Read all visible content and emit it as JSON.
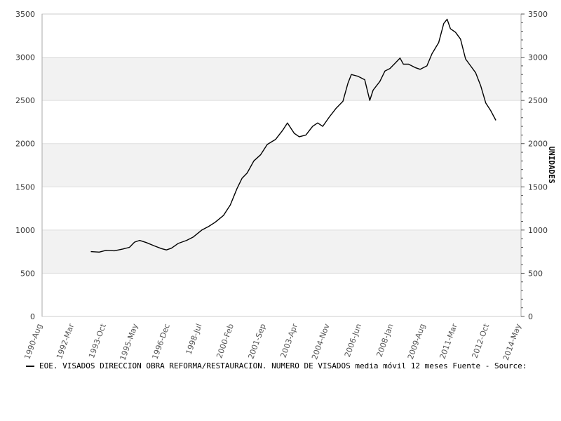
{
  "chart_data": {
    "type": "line",
    "ylabel_right": "UNIDADES",
    "ylim": [
      0,
      3500
    ],
    "yticks": [
      0,
      500,
      1000,
      1500,
      2000,
      2500,
      3000,
      3500
    ],
    "x_tick_labels": [
      "1990-Aug",
      "1992-Mar",
      "1993-Oct",
      "1995-May",
      "1996-Dec",
      "1998-Jul",
      "2000-Feb",
      "2001-Sep",
      "2003-Apr",
      "2004-Nov",
      "2006-Jun",
      "2008-Jan",
      "2009-Aug",
      "2011-Mar",
      "2012-Oct",
      "2014-May"
    ],
    "grid": "horizontal bands",
    "band_color": "#f2f2f2",
    "line_color": "#000000",
    "series": [
      {
        "name": "EOE. VISADOS DIRECCION OBRA REFORMA/RESTAURACION. NUMERO DE VISADOS media móvil 12 meses",
        "points": [
          [
            "1993-01",
            750
          ],
          [
            "1993-06",
            745
          ],
          [
            "1993-10",
            765
          ],
          [
            "1994-03",
            760
          ],
          [
            "1994-08",
            780
          ],
          [
            "1994-12",
            800
          ],
          [
            "1995-03",
            860
          ],
          [
            "1995-06",
            880
          ],
          [
            "1995-10",
            855
          ],
          [
            "1996-03",
            815
          ],
          [
            "1996-07",
            785
          ],
          [
            "1996-10",
            770
          ],
          [
            "1997-01",
            790
          ],
          [
            "1997-05",
            845
          ],
          [
            "1997-10",
            880
          ],
          [
            "1998-02",
            920
          ],
          [
            "1998-07",
            1000
          ],
          [
            "1998-11",
            1040
          ],
          [
            "1999-03",
            1090
          ],
          [
            "1999-08",
            1170
          ],
          [
            "1999-12",
            1290
          ],
          [
            "2000-04",
            1480
          ],
          [
            "2000-07",
            1600
          ],
          [
            "2000-10",
            1660
          ],
          [
            "2001-02",
            1800
          ],
          [
            "2001-06",
            1870
          ],
          [
            "2001-10",
            1990
          ],
          [
            "2002-03",
            2050
          ],
          [
            "2002-07",
            2150
          ],
          [
            "2002-10",
            2240
          ],
          [
            "2003-02",
            2120
          ],
          [
            "2003-05",
            2080
          ],
          [
            "2003-09",
            2100
          ],
          [
            "2004-01",
            2200
          ],
          [
            "2004-04",
            2240
          ],
          [
            "2004-07",
            2200
          ],
          [
            "2004-11",
            2310
          ],
          [
            "2005-03",
            2410
          ],
          [
            "2005-07",
            2490
          ],
          [
            "2005-10",
            2700
          ],
          [
            "2005-12",
            2800
          ],
          [
            "2006-04",
            2780
          ],
          [
            "2006-08",
            2740
          ],
          [
            "2006-11",
            2500
          ],
          [
            "2007-01",
            2620
          ],
          [
            "2007-05",
            2720
          ],
          [
            "2007-08",
            2840
          ],
          [
            "2007-11",
            2870
          ],
          [
            "2008-02",
            2930
          ],
          [
            "2008-05",
            2990
          ],
          [
            "2008-07",
            2920
          ],
          [
            "2008-10",
            2920
          ],
          [
            "2009-02",
            2880
          ],
          [
            "2009-05",
            2860
          ],
          [
            "2009-09",
            2900
          ],
          [
            "2009-12",
            3040
          ],
          [
            "2010-04",
            3170
          ],
          [
            "2010-07",
            3390
          ],
          [
            "2010-09",
            3440
          ],
          [
            "2010-11",
            3330
          ],
          [
            "2011-02",
            3290
          ],
          [
            "2011-05",
            3210
          ],
          [
            "2011-08",
            2980
          ],
          [
            "2011-11",
            2900
          ],
          [
            "2012-02",
            2820
          ],
          [
            "2012-05",
            2670
          ],
          [
            "2012-08",
            2470
          ],
          [
            "2012-11",
            2380
          ],
          [
            "2013-02",
            2270
          ]
        ]
      }
    ]
  },
  "legend": {
    "text": "EOE. VISADOS DIRECCION OBRA REFORMA/RESTAURACION. NUMERO DE VISADOS media móvil 12 meses  Fuente - Source:"
  }
}
